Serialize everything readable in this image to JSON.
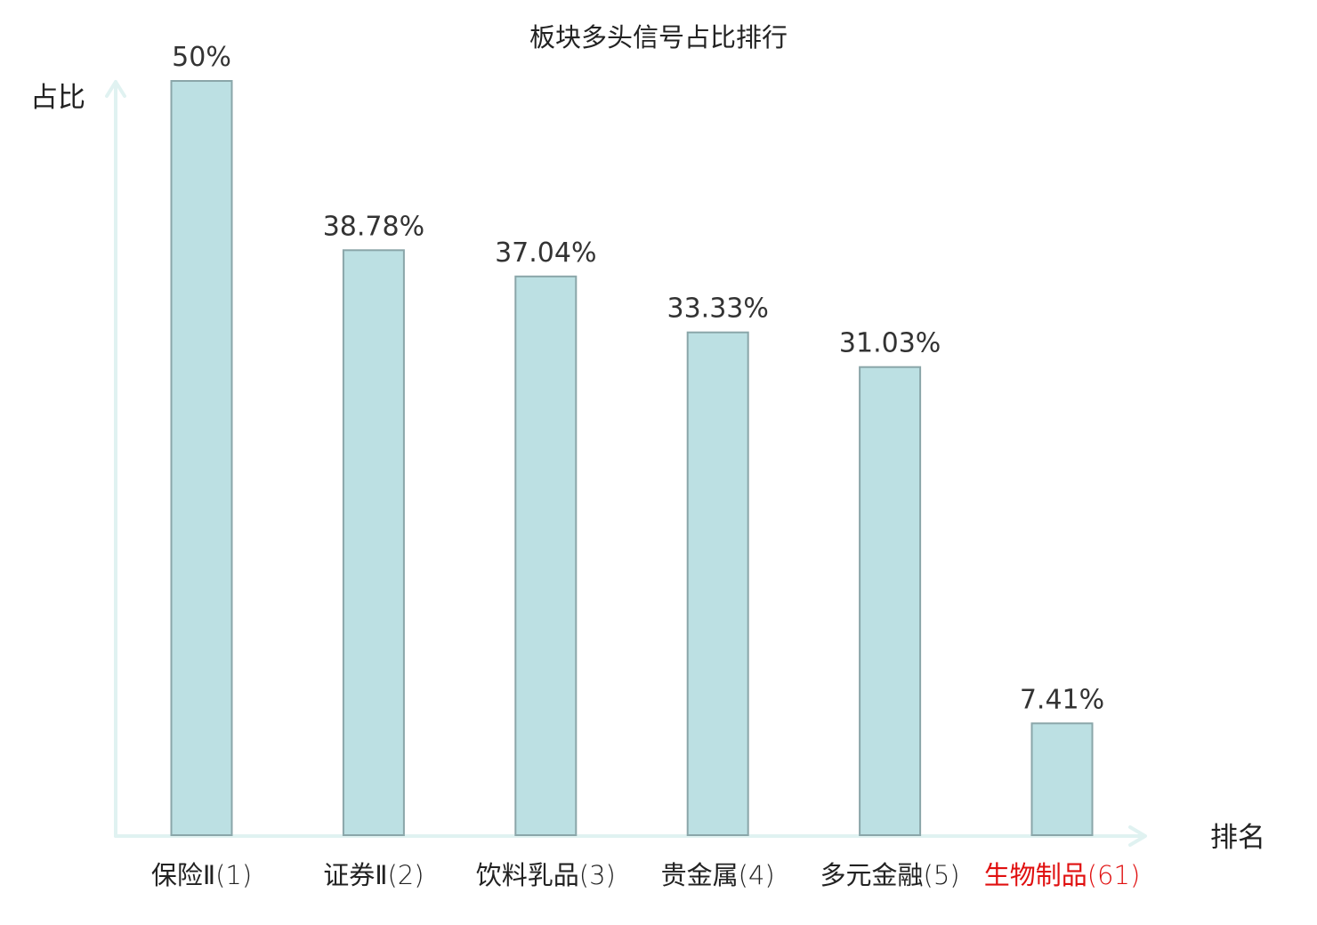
{
  "chart_data": {
    "type": "bar",
    "title": "板块多头信号占比排行",
    "ylabel": "占比",
    "xlabel": "排名",
    "categories": [
      {
        "name": "保险Ⅱ",
        "rank": "(1)",
        "highlight": false
      },
      {
        "name": "证券Ⅱ",
        "rank": "(2)",
        "highlight": false
      },
      {
        "name": "饮料乳品",
        "rank": "(3)",
        "highlight": false
      },
      {
        "name": "贵金属",
        "rank": "(4)",
        "highlight": false
      },
      {
        "name": "多元金融",
        "rank": "(5)",
        "highlight": false
      },
      {
        "name": "生物制品",
        "rank": "(61)",
        "highlight": true
      }
    ],
    "values": [
      50,
      38.78,
      37.04,
      33.33,
      31.03,
      7.41
    ],
    "value_labels": [
      "50%",
      "38.78%",
      "37.04%",
      "33.33%",
      "31.03%",
      "7.41%"
    ],
    "ylim": [
      0,
      50
    ],
    "grid": false,
    "legend": "none",
    "colors": {
      "bar_fill": "#bce0e3",
      "bar_stroke": "#8aa6a9",
      "axis": "#e0f2f1",
      "highlight_text": "#e01010",
      "normal_text": "#222222"
    }
  }
}
